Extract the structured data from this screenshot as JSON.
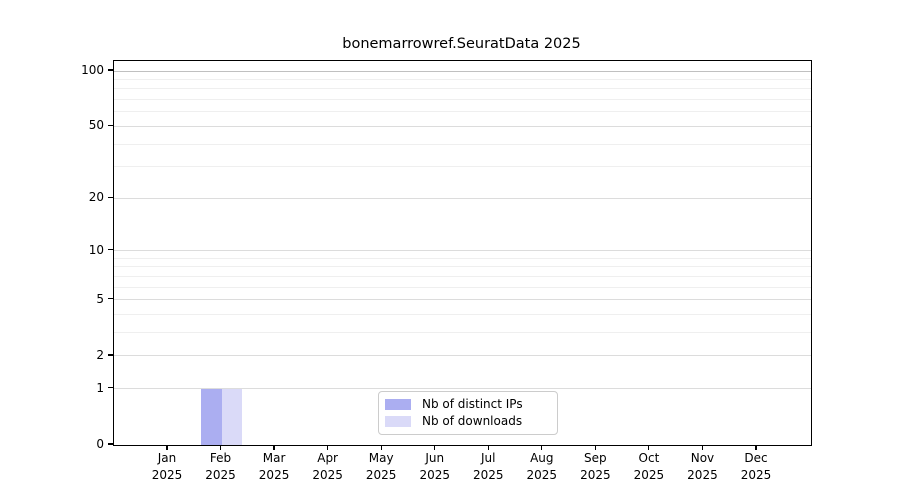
{
  "chart": {
    "title": "bonemarrowref.SeuratData 2025",
    "legend": {
      "items": [
        {
          "label": "Nb of distinct IPs",
          "color": "#abaef1"
        },
        {
          "label": "Nb of downloads",
          "color": "#dadaf8"
        }
      ]
    }
  },
  "chart_data": {
    "type": "bar",
    "title": "bonemarrowref.SeuratData 2025",
    "categories": [
      "Jan",
      "Feb",
      "Mar",
      "Apr",
      "May",
      "Jun",
      "Jul",
      "Aug",
      "Sep",
      "Oct",
      "Nov",
      "Dec"
    ],
    "x_year_label": "2025",
    "series": [
      {
        "name": "Nb of distinct IPs",
        "color": "#abaef1",
        "values": [
          0,
          1,
          0,
          0,
          0,
          0,
          0,
          0,
          0,
          0,
          0,
          0
        ]
      },
      {
        "name": "Nb of downloads",
        "color": "#dadaf8",
        "values": [
          0,
          1,
          0,
          0,
          0,
          0,
          0,
          0,
          0,
          0,
          0,
          0
        ]
      }
    ],
    "xlabel": "",
    "ylabel": "",
    "y_scale": "log1p",
    "ylim": [
      0,
      100
    ],
    "y_ticks": [
      0,
      1,
      2,
      5,
      10,
      20,
      50,
      100
    ],
    "y_minor_gridlines": [
      1,
      2,
      3,
      4,
      5,
      6,
      7,
      8,
      9,
      10,
      20,
      30,
      40,
      50,
      60,
      70,
      80,
      90,
      100
    ],
    "grid": true,
    "legend_position": "bottom-center",
    "gridline_color_minor": "#efefef",
    "gridline_color_major": "#dcdcdc",
    "gridline_color_top": "#c0c0c0"
  }
}
